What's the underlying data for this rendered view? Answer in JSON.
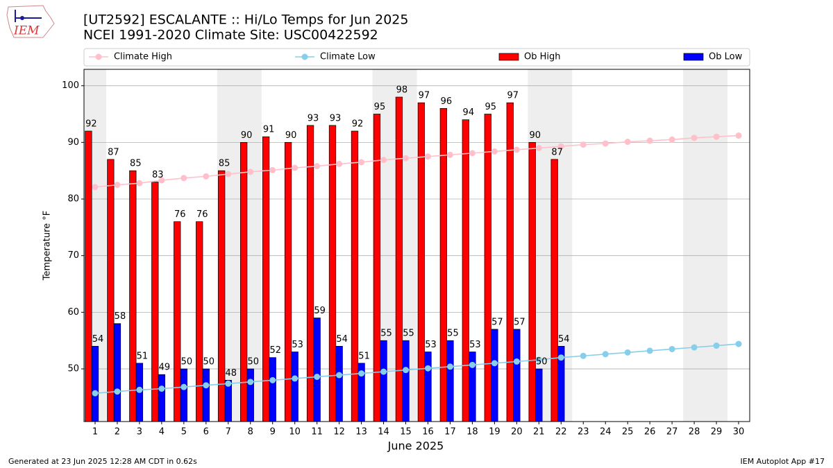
{
  "logo_text": "IEM",
  "chart_data": {
    "type": "bar-line",
    "title": "[UT2592] ESCALANTE :: Hi/Lo Temps for Jun 2025",
    "subtitle": "NCEI 1991-2020 Climate Site: USC00422592",
    "x_label": "June 2025",
    "y_label": "Temperature °F",
    "x": [
      1,
      2,
      3,
      4,
      5,
      6,
      7,
      8,
      9,
      10,
      11,
      12,
      13,
      14,
      15,
      16,
      17,
      18,
      19,
      20,
      21,
      22,
      23,
      24,
      25,
      26,
      27,
      28,
      29,
      30
    ],
    "series": [
      {
        "name": "Climate High",
        "type": "line",
        "color": "#ffc0cb",
        "values": [
          82.1,
          82.5,
          82.8,
          83.3,
          83.7,
          84.0,
          84.4,
          84.8,
          85.1,
          85.5,
          85.8,
          86.2,
          86.5,
          86.9,
          87.2,
          87.5,
          87.8,
          88.1,
          88.4,
          88.7,
          89.0,
          89.3,
          89.6,
          89.8,
          90.1,
          90.3,
          90.5,
          90.8,
          91.0,
          91.2
        ]
      },
      {
        "name": "Climate Low",
        "type": "line",
        "color": "#87ceeb",
        "values": [
          45.7,
          46.0,
          46.3,
          46.5,
          46.8,
          47.1,
          47.4,
          47.7,
          48.0,
          48.3,
          48.6,
          48.9,
          49.2,
          49.5,
          49.8,
          50.1,
          50.4,
          50.7,
          51.0,
          51.3,
          51.6,
          52.0,
          52.3,
          52.6,
          52.9,
          53.2,
          53.5,
          53.8,
          54.1,
          54.4
        ]
      },
      {
        "name": "Ob High",
        "type": "bar",
        "color": "#ff0000",
        "values": [
          92,
          87,
          85,
          83,
          76,
          76,
          85,
          90,
          91,
          90,
          93,
          93,
          92,
          95,
          98,
          97,
          96,
          94,
          95,
          97,
          90,
          87,
          null,
          null,
          null,
          null,
          null,
          null,
          null,
          null
        ]
      },
      {
        "name": "Ob Low",
        "type": "bar",
        "color": "#0000ff",
        "values": [
          54,
          58,
          51,
          49,
          50,
          50,
          48,
          50,
          52,
          53,
          59,
          54,
          51,
          55,
          55,
          53,
          55,
          53,
          57,
          57,
          50,
          54,
          null,
          null,
          null,
          null,
          null,
          null,
          null,
          null
        ]
      }
    ],
    "xlim": [
      0.5,
      30.5
    ],
    "xticks": [
      1,
      2,
      3,
      4,
      5,
      6,
      7,
      8,
      9,
      10,
      11,
      12,
      13,
      14,
      15,
      16,
      17,
      18,
      19,
      20,
      21,
      22,
      23,
      24,
      25,
      26,
      27,
      28,
      29,
      30
    ],
    "ylim": [
      40.7,
      102.9
    ],
    "yticks": [
      50,
      60,
      70,
      80,
      90,
      100
    ],
    "grid": true,
    "shaded_ranges": [
      [
        0.5,
        1.5
      ],
      [
        6.5,
        8.5
      ],
      [
        13.5,
        15.5
      ],
      [
        20.5,
        22.5
      ],
      [
        27.5,
        29.5
      ]
    ]
  },
  "footer": {
    "left": "Generated at 23 Jun 2025 12:28 AM CDT in 0.62s",
    "right": "IEM Autoplot App #17"
  }
}
